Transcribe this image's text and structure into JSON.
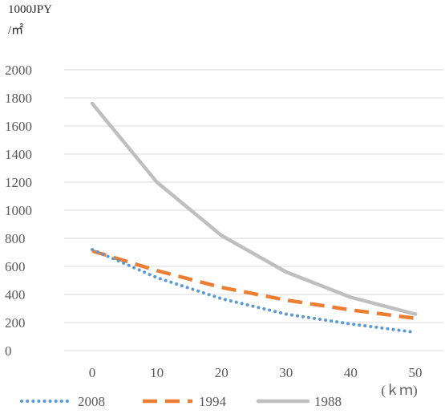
{
  "chart_data": {
    "type": "line",
    "title": "",
    "ylabel_lines": [
      "1000JPY",
      "/㎡"
    ],
    "xlabel": "(ｋｍ)",
    "x": [
      0,
      10,
      20,
      30,
      40,
      50
    ],
    "x_tick_labels": [
      "0",
      "10",
      "20",
      "30",
      "40",
      "50"
    ],
    "ylim": [
      0,
      2000
    ],
    "y_ticks": [
      0,
      200,
      400,
      600,
      800,
      1000,
      1200,
      1400,
      1600,
      1800,
      2000
    ],
    "y_tick_labels": [
      "0",
      "200",
      "400",
      "600",
      "800",
      "1000",
      "1200",
      "1400",
      "1600",
      "1800",
      "2000"
    ],
    "grid": "horizontal",
    "legend_position": "bottom",
    "series": [
      {
        "name": "2008",
        "values": [
          720,
          520,
          370,
          260,
          190,
          130
        ],
        "color": "#5b9bd5",
        "style": "dotted"
      },
      {
        "name": "1994",
        "values": [
          710,
          570,
          450,
          360,
          290,
          230
        ],
        "color": "#ed7d31",
        "style": "dashed"
      },
      {
        "name": "1988",
        "values": [
          1760,
          1200,
          820,
          560,
          380,
          260
        ],
        "color": "#bfbfbf",
        "style": "solid"
      }
    ]
  }
}
